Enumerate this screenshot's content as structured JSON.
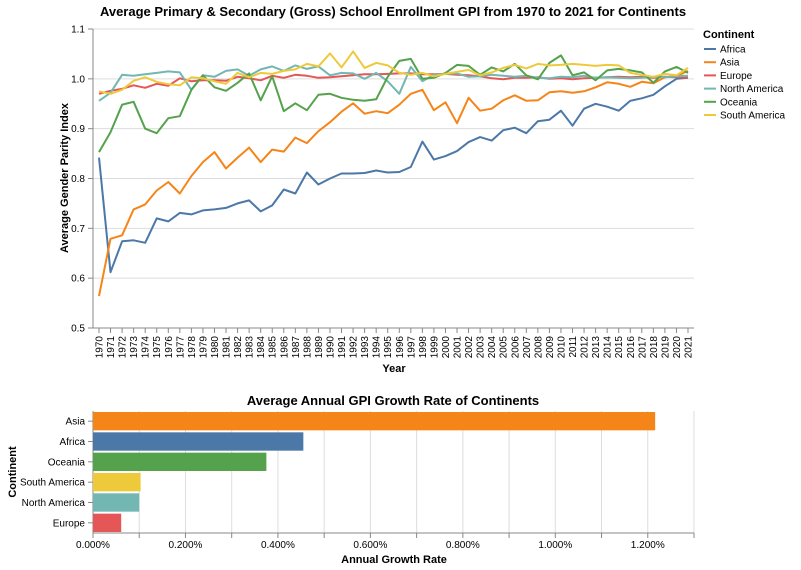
{
  "chart_data": [
    {
      "type": "line",
      "title": "Average Primary & Secondary (Gross) School Enrollment GPI from 1970 to 2021 for Continents",
      "xlabel": "Year",
      "ylabel": "Average Gender Parity Index",
      "ylim": [
        0.5,
        1.1
      ],
      "yticks": [
        "0.5",
        "0.6",
        "0.7",
        "0.8",
        "0.9",
        "1.0",
        "1.1"
      ],
      "grid": true,
      "legend_title": "Continent",
      "legend_position": "right",
      "x": [
        1970,
        1971,
        1972,
        1973,
        1974,
        1975,
        1976,
        1977,
        1978,
        1979,
        1980,
        1981,
        1982,
        1983,
        1984,
        1985,
        1986,
        1987,
        1988,
        1989,
        1990,
        1991,
        1992,
        1993,
        1994,
        1995,
        1996,
        1997,
        1998,
        1999,
        2000,
        2001,
        2002,
        2003,
        2004,
        2005,
        2006,
        2007,
        2008,
        2009,
        2010,
        2011,
        2012,
        2013,
        2014,
        2015,
        2016,
        2017,
        2018,
        2019,
        2020,
        2021
      ],
      "series": [
        {
          "name": "Africa",
          "color": "#4c78a8",
          "values": [
            0.842,
            0.612,
            0.674,
            0.676,
            0.671,
            0.72,
            0.714,
            0.731,
            0.728,
            0.736,
            0.738,
            0.741,
            0.75,
            0.756,
            0.734,
            0.746,
            0.778,
            0.77,
            0.812,
            0.788,
            0.8,
            0.81,
            0.81,
            0.811,
            0.816,
            0.812,
            0.813,
            0.823,
            0.874,
            0.838,
            0.845,
            0.855,
            0.873,
            0.883,
            0.876,
            0.897,
            0.902,
            0.891,
            0.915,
            0.918,
            0.936,
            0.906,
            0.94,
            0.95,
            0.944,
            0.936,
            0.956,
            0.961,
            0.968,
            0.985,
            1.0,
            1.002
          ]
        },
        {
          "name": "Asia",
          "color": "#f58518",
          "values": [
            0.564,
            0.679,
            0.686,
            0.738,
            0.748,
            0.776,
            0.793,
            0.77,
            0.805,
            0.833,
            0.853,
            0.82,
            0.842,
            0.862,
            0.833,
            0.858,
            0.854,
            0.882,
            0.871,
            0.895,
            0.913,
            0.934,
            0.951,
            0.93,
            0.935,
            0.931,
            0.948,
            0.97,
            0.978,
            0.937,
            0.953,
            0.911,
            0.962,
            0.936,
            0.94,
            0.957,
            0.967,
            0.956,
            0.957,
            0.973,
            0.975,
            0.972,
            0.975,
            0.983,
            0.993,
            0.99,
            0.984,
            0.994,
            0.991,
            1.003,
            1.005,
            1.016
          ]
        },
        {
          "name": "Europe",
          "color": "#e45756",
          "values": [
            0.97,
            0.976,
            0.98,
            0.987,
            0.982,
            0.99,
            0.986,
            1.001,
            0.995,
            0.997,
            0.997,
            0.996,
            1.004,
            1.001,
            0.997,
            1.006,
            1.002,
            1.008,
            1.006,
            1.002,
            1.003,
            1.005,
            1.007,
            1.009,
            1.009,
            1.01,
            1.011,
            1.011,
            1.009,
            1.009,
            1.01,
            1.008,
            1.007,
            1.005,
            1.001,
            0.999,
            1.002,
            1.002,
            1.003,
            1.0,
            1.001,
            0.999,
            1.001,
            1.002,
            1.003,
            1.004,
            1.003,
            1.004,
            1.002,
            1.004,
            1.003,
            1.002
          ]
        },
        {
          "name": "North America",
          "color": "#72b7b2",
          "values": [
            0.956,
            0.972,
            1.008,
            1.006,
            1.009,
            1.012,
            1.015,
            1.013,
            0.978,
            1.007,
            1.004,
            1.016,
            1.019,
            1.006,
            1.019,
            1.025,
            1.016,
            1.027,
            1.02,
            1.025,
            1.007,
            1.012,
            1.011,
            1.0,
            1.012,
            0.995,
            0.97,
            1.024,
            0.995,
            1.008,
            1.01,
            1.011,
            1.004,
            1.005,
            1.008,
            1.006,
            1.004,
            1.006,
            1.002,
            1.001,
            1.004,
            1.003,
            1.006,
            1.002,
            1.003,
            1.002,
            1.001,
            1.002,
            1.004,
            1.003,
            1.005,
            1.006
          ]
        },
        {
          "name": "Oceania",
          "color": "#54a24b",
          "values": [
            0.853,
            0.893,
            0.948,
            0.954,
            0.9,
            0.891,
            0.921,
            0.925,
            0.978,
            1.007,
            0.983,
            0.976,
            0.992,
            1.011,
            0.957,
            1.005,
            0.935,
            0.951,
            0.937,
            0.968,
            0.97,
            0.962,
            0.958,
            0.956,
            0.959,
            1.004,
            1.036,
            1.04,
            1.0,
            1.002,
            1.012,
            1.028,
            1.026,
            1.008,
            1.023,
            1.015,
            1.03,
            1.007,
            0.999,
            1.032,
            1.047,
            1.007,
            1.013,
            0.997,
            1.017,
            1.02,
            1.017,
            1.013,
            0.992,
            1.015,
            1.024,
            1.012
          ]
        },
        {
          "name": "South America",
          "color": "#eeca3b",
          "values": [
            0.975,
            0.97,
            0.978,
            0.996,
            1.003,
            0.994,
            0.989,
            0.987,
            1.003,
            1.001,
            0.995,
            0.99,
            1.012,
            1.003,
            1.012,
            1.01,
            1.016,
            1.019,
            1.03,
            1.025,
            1.051,
            1.023,
            1.055,
            1.022,
            1.032,
            1.027,
            1.012,
            1.008,
            1.012,
            1.005,
            1.01,
            1.014,
            1.018,
            1.007,
            1.013,
            1.022,
            1.028,
            1.021,
            1.03,
            1.027,
            1.028,
            1.03,
            1.028,
            1.026,
            1.028,
            1.027,
            1.012,
            1.008,
            1.004,
            1.01,
            1.007,
            1.022
          ]
        }
      ]
    },
    {
      "type": "bar",
      "orientation": "horizontal",
      "title": "Average Annual GPI Growth Rate of Continents",
      "xlabel": "Annual Growth Rate",
      "ylabel": "Continent",
      "xlim": [
        0,
        1.3
      ],
      "xticks": [
        "0.000%",
        "0.200%",
        "0.400%",
        "0.600%",
        "0.800%",
        "1.000%",
        "1.200%"
      ],
      "grid": true,
      "categories": [
        "Asia",
        "Africa",
        "Oceania",
        "South America",
        "North America",
        "Europe"
      ],
      "values": [
        1.216,
        0.455,
        0.375,
        0.103,
        0.1,
        0.061
      ],
      "colors": [
        "#f58518",
        "#4c78a8",
        "#54a24b",
        "#eeca3b",
        "#72b7b2",
        "#e45756"
      ]
    }
  ]
}
